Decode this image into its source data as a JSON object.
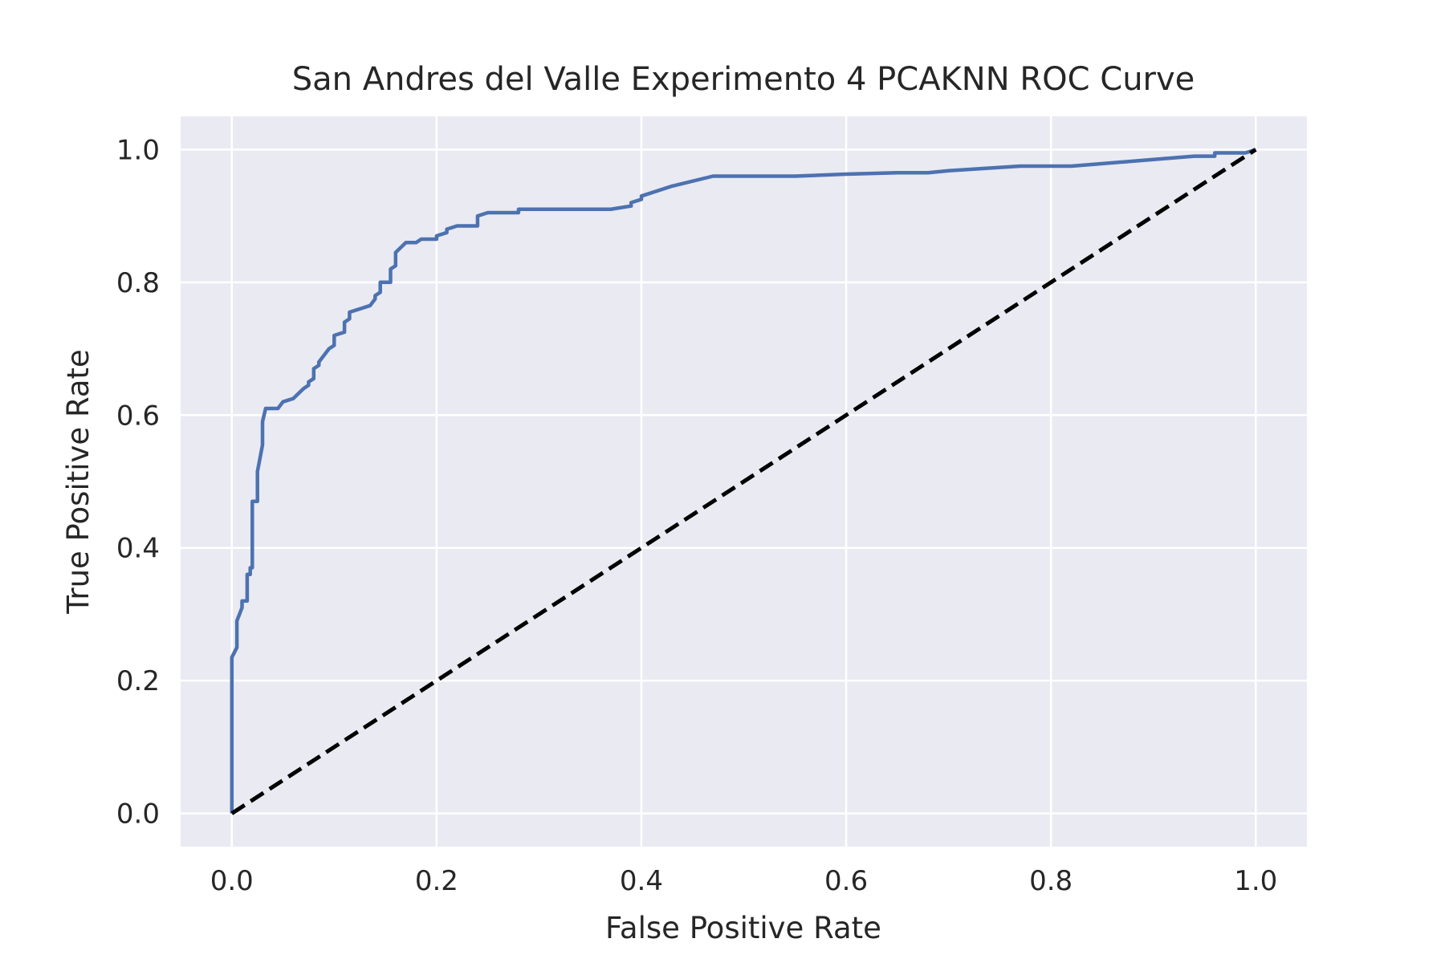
{
  "chart_data": {
    "type": "line",
    "title": "San Andres del Valle Experimento 4 PCAKNN ROC Curve",
    "xlabel": "False Positive Rate",
    "ylabel": "True Positive Rate",
    "xlim": [
      -0.05,
      1.05
    ],
    "ylim": [
      -0.05,
      1.05
    ],
    "xticks": [
      0.0,
      0.2,
      0.4,
      0.6,
      0.8,
      1.0
    ],
    "yticks": [
      0.0,
      0.2,
      0.4,
      0.6,
      0.8,
      1.0
    ],
    "xtick_labels": [
      "0.0",
      "0.2",
      "0.4",
      "0.6",
      "0.8",
      "1.0"
    ],
    "ytick_labels": [
      "0.0",
      "0.2",
      "0.4",
      "0.6",
      "0.8",
      "1.0"
    ],
    "grid": true,
    "background": "#eaeaf2",
    "series": [
      {
        "name": "ROC",
        "color": "#4c72b0",
        "style": "solid",
        "x": [
          0.0,
          0.0,
          0.005,
          0.005,
          0.01,
          0.01,
          0.015,
          0.015,
          0.018,
          0.018,
          0.02,
          0.02,
          0.025,
          0.025,
          0.03,
          0.03,
          0.033,
          0.045,
          0.05,
          0.06,
          0.07,
          0.075,
          0.075,
          0.08,
          0.08,
          0.085,
          0.085,
          0.095,
          0.095,
          0.1,
          0.1,
          0.11,
          0.11,
          0.115,
          0.115,
          0.135,
          0.14,
          0.14,
          0.145,
          0.145,
          0.155,
          0.155,
          0.16,
          0.16,
          0.17,
          0.18,
          0.185,
          0.2,
          0.2,
          0.21,
          0.21,
          0.22,
          0.23,
          0.24,
          0.24,
          0.25,
          0.27,
          0.28,
          0.28,
          0.33,
          0.37,
          0.39,
          0.39,
          0.4,
          0.4,
          0.43,
          0.47,
          0.5,
          0.55,
          0.6,
          0.65,
          0.68,
          0.7,
          0.77,
          0.8,
          0.82,
          0.9,
          0.94,
          0.96,
          0.96,
          0.99,
          1.0
        ],
        "y": [
          0.0,
          0.235,
          0.25,
          0.29,
          0.31,
          0.32,
          0.32,
          0.36,
          0.36,
          0.37,
          0.37,
          0.47,
          0.47,
          0.515,
          0.555,
          0.59,
          0.61,
          0.61,
          0.62,
          0.625,
          0.64,
          0.645,
          0.65,
          0.655,
          0.67,
          0.675,
          0.68,
          0.7,
          0.7,
          0.705,
          0.72,
          0.725,
          0.74,
          0.745,
          0.755,
          0.765,
          0.775,
          0.78,
          0.785,
          0.8,
          0.8,
          0.82,
          0.825,
          0.845,
          0.86,
          0.86,
          0.865,
          0.865,
          0.87,
          0.875,
          0.88,
          0.885,
          0.885,
          0.885,
          0.9,
          0.905,
          0.905,
          0.905,
          0.91,
          0.91,
          0.91,
          0.915,
          0.92,
          0.925,
          0.93,
          0.945,
          0.96,
          0.96,
          0.96,
          0.963,
          0.965,
          0.965,
          0.968,
          0.975,
          0.975,
          0.975,
          0.985,
          0.99,
          0.99,
          0.995,
          0.995,
          1.0
        ]
      },
      {
        "name": "Chance",
        "color": "#000000",
        "style": "dashed",
        "x": [
          0.0,
          1.0
        ],
        "y": [
          0.0,
          1.0
        ]
      }
    ]
  }
}
